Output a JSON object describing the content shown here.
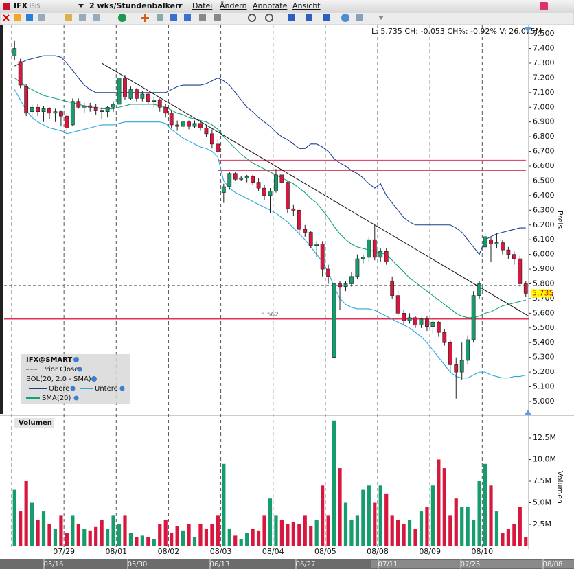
{
  "menu": {
    "symbol": "IFX",
    "exchange": "IBIS",
    "period": "2 wks/Stundenbalken",
    "items": [
      "Datei",
      "Ändern",
      "Annotate",
      "Ansicht"
    ]
  },
  "chart_data": {
    "type": "candlestick",
    "info": "L: 5.735 CH: -0.053 CH%: -0.92% V: 26.075M",
    "y_title": "Preis",
    "categories": [
      null,
      null,
      null,
      null,
      null,
      null,
      null,
      null,
      null,
      "07/29",
      null,
      null,
      null,
      null,
      null,
      null,
      null,
      null,
      "08/01",
      null,
      null,
      null,
      null,
      null,
      null,
      null,
      null,
      "08/02",
      null,
      null,
      null,
      null,
      null,
      null,
      null,
      null,
      "08/03",
      null,
      null,
      null,
      null,
      null,
      null,
      null,
      null,
      "08/04",
      null,
      null,
      null,
      null,
      null,
      null,
      null,
      null,
      "08/05",
      null,
      null,
      null,
      null,
      null,
      null,
      null,
      null,
      "08/08",
      null,
      null,
      null,
      null,
      null,
      null,
      null,
      null,
      "08/09",
      null,
      null,
      null,
      null,
      null,
      null,
      null,
      null,
      "08/10",
      null,
      null,
      null,
      null,
      null,
      null,
      null
    ],
    "open": [
      7.35,
      7.31,
      7.14,
      6.97,
      7.0,
      6.97,
      6.99,
      6.96,
      6.97,
      6.94,
      6.88,
      7.04,
      7.0,
      7.01,
      7.0,
      6.98,
      6.97,
      7.0,
      7.02,
      7.2,
      7.06,
      7.12,
      7.06,
      7.09,
      7.04,
      7.05,
      7.0,
      6.96,
      6.88,
      6.87,
      6.9,
      6.87,
      6.89,
      6.86,
      6.82,
      6.75,
      6.42,
      6.46,
      6.55,
      6.51,
      6.52,
      6.53,
      6.49,
      6.45,
      6.4,
      6.43,
      6.54,
      6.49,
      6.31,
      6.3,
      6.17,
      6.15,
      6.06,
      6.07,
      5.9,
      5.3,
      5.8,
      5.78,
      5.8,
      5.85,
      5.97,
      5.98,
      6.1,
      5.98,
      6.02,
      5.82,
      5.72,
      5.6,
      5.55,
      5.57,
      5.52,
      5.56,
      5.51,
      5.54,
      5.47,
      5.4,
      5.25,
      5.2,
      5.28,
      5.42,
      5.72,
      6.05,
      6.1,
      6.07,
      6.08,
      6.03,
      6.0,
      5.97,
      5.8
    ],
    "high": [
      7.45,
      7.33,
      7.16,
      7.02,
      7.02,
      7.01,
      7.0,
      6.99,
      6.98,
      6.96,
      7.06,
      7.06,
      7.03,
      7.03,
      7.02,
      7.0,
      7.01,
      7.04,
      7.22,
      7.22,
      7.14,
      7.13,
      7.11,
      7.1,
      7.07,
      7.06,
      7.02,
      6.98,
      6.91,
      6.91,
      6.91,
      6.91,
      6.9,
      6.88,
      6.85,
      6.78,
      6.48,
      6.56,
      6.56,
      6.53,
      6.54,
      6.54,
      6.52,
      6.47,
      6.45,
      6.58,
      6.56,
      6.5,
      6.34,
      6.31,
      6.2,
      6.16,
      6.09,
      6.09,
      5.93,
      5.85,
      5.82,
      5.82,
      5.88,
      6.0,
      6.0,
      6.12,
      6.2,
      6.04,
      6.04,
      5.85,
      5.75,
      5.62,
      5.6,
      5.58,
      5.57,
      5.58,
      5.56,
      5.55,
      5.49,
      5.42,
      5.3,
      5.4,
      5.45,
      5.75,
      5.82,
      6.15,
      6.12,
      6.14,
      6.1,
      6.05,
      6.02,
      5.99,
      5.82
    ],
    "low": [
      7.32,
      7.13,
      6.94,
      6.93,
      6.94,
      6.9,
      6.92,
      6.9,
      6.87,
      6.82,
      6.87,
      6.99,
      6.96,
      6.97,
      6.95,
      6.92,
      6.93,
      6.97,
      7.01,
      7.05,
      7.05,
      7.04,
      7.04,
      7.02,
      7.0,
      6.97,
      6.93,
      6.86,
      6.84,
      6.85,
      6.85,
      6.86,
      6.84,
      6.8,
      6.72,
      6.69,
      6.35,
      6.44,
      6.5,
      6.5,
      6.49,
      6.47,
      6.43,
      6.37,
      6.28,
      6.42,
      6.47,
      6.28,
      6.26,
      6.14,
      6.12,
      6.04,
      5.98,
      5.85,
      5.8,
      5.28,
      5.62,
      5.75,
      5.78,
      5.83,
      5.94,
      5.95,
      5.96,
      5.95,
      5.93,
      5.7,
      5.58,
      5.52,
      5.53,
      5.5,
      5.5,
      5.48,
      5.46,
      5.44,
      5.38,
      5.2,
      5.02,
      5.15,
      5.25,
      5.4,
      5.7,
      6.0,
      5.95,
      6.04,
      6.0,
      5.97,
      5.93,
      5.78,
      5.71
    ],
    "close": [
      7.4,
      7.15,
      6.96,
      7.0,
      6.97,
      6.99,
      6.96,
      6.97,
      6.94,
      6.86,
      7.04,
      7.0,
      7.01,
      7.0,
      6.98,
      6.97,
      7.0,
      7.02,
      7.2,
      7.07,
      7.12,
      7.06,
      7.09,
      7.04,
      7.05,
      7.0,
      6.96,
      6.88,
      6.87,
      6.9,
      6.87,
      6.89,
      6.86,
      6.82,
      6.75,
      6.7,
      6.46,
      6.55,
      6.51,
      6.52,
      6.53,
      6.49,
      6.45,
      6.4,
      6.43,
      6.54,
      6.49,
      6.31,
      6.3,
      6.17,
      6.15,
      6.06,
      6.07,
      5.9,
      5.85,
      5.8,
      5.78,
      5.8,
      5.85,
      5.97,
      5.98,
      6.1,
      5.98,
      6.02,
      5.95,
      5.72,
      5.6,
      5.55,
      5.57,
      5.52,
      5.56,
      5.51,
      5.54,
      5.47,
      5.4,
      5.25,
      5.2,
      5.28,
      5.42,
      5.72,
      5.8,
      6.12,
      6.07,
      6.08,
      6.03,
      6.0,
      5.97,
      5.8,
      5.735
    ],
    "up_color": "#169c6d",
    "down_color": "#d8173f",
    "ylim": [
      4.916,
      7.561
    ],
    "yticks": [
      {
        "value": 5.0,
        "label": "5.000"
      },
      {
        "value": 5.1,
        "label": "5.100"
      },
      {
        "value": 5.2,
        "label": "5.200"
      },
      {
        "value": 5.3,
        "label": "5.300"
      },
      {
        "value": 5.4,
        "label": "5.400"
      },
      {
        "value": 5.5,
        "label": "5.500"
      },
      {
        "value": 5.6,
        "label": "5.600"
      },
      {
        "value": 5.7,
        "label": "5.700"
      },
      {
        "value": 5.8,
        "label": "5.800"
      },
      {
        "value": 5.9,
        "label": "5.900"
      },
      {
        "value": 6.0,
        "label": "6.000"
      },
      {
        "value": 6.1,
        "label": "6.100"
      },
      {
        "value": 6.2,
        "label": "6.200"
      },
      {
        "value": 6.3,
        "label": "6.300"
      },
      {
        "value": 6.4,
        "label": "6.400"
      },
      {
        "value": 6.5,
        "label": "6.500"
      },
      {
        "value": 6.6,
        "label": "6.600"
      },
      {
        "value": 6.7,
        "label": "6.700"
      },
      {
        "value": 6.8,
        "label": "6.800"
      },
      {
        "value": 6.9,
        "label": "6.900"
      },
      {
        "value": 7.0,
        "label": "7.000"
      },
      {
        "value": 7.1,
        "label": "7.100"
      },
      {
        "value": 7.2,
        "label": "7.200"
      },
      {
        "value": 7.3,
        "label": "7.300"
      },
      {
        "value": 7.4,
        "label": "7.400"
      },
      {
        "value": 7.5,
        "label": "7.500"
      }
    ],
    "last": 5.735,
    "prior_close": 5.79,
    "levels": [
      6.64,
      6.57,
      5.562
    ],
    "level_color": "#e0305a",
    "trendline": {
      "x": [
        15,
        88.5
      ],
      "y": [
        7.3,
        5.58
      ]
    },
    "bands": {
      "upper_color": "#1b3e95",
      "lower_color": "#2aa9df",
      "sma_color": "#12a27a",
      "upper": [
        7.28,
        7.3,
        7.32,
        7.33,
        7.34,
        7.35,
        7.35,
        7.35,
        7.34,
        7.3,
        7.25,
        7.2,
        7.15,
        7.12,
        7.1,
        7.1,
        7.1,
        7.1,
        7.1,
        7.1,
        7.1,
        7.1,
        7.1,
        7.1,
        7.1,
        7.1,
        7.1,
        7.12,
        7.14,
        7.15,
        7.15,
        7.15,
        7.15,
        7.16,
        7.18,
        7.2,
        7.18,
        7.15,
        7.1,
        7.05,
        7.0,
        6.97,
        6.93,
        6.9,
        6.87,
        6.83,
        6.8,
        6.78,
        6.75,
        6.72,
        6.72,
        6.75,
        6.75,
        6.73,
        6.7,
        6.65,
        6.62,
        6.6,
        6.57,
        6.55,
        6.52,
        6.48,
        6.45,
        6.48,
        6.4,
        6.35,
        6.3,
        6.25,
        6.22,
        6.2,
        6.2,
        6.2,
        6.2,
        6.2,
        6.2,
        6.2,
        6.18,
        6.15,
        6.1,
        6.05,
        6.0,
        6.1,
        6.12,
        6.14,
        6.15,
        6.16,
        6.17,
        6.18,
        6.18
      ],
      "sma": [
        7.2,
        7.17,
        7.14,
        7.12,
        7.1,
        7.08,
        7.07,
        7.06,
        7.05,
        7.04,
        7.03,
        7.02,
        7.01,
        7.0,
        7.0,
        6.99,
        6.99,
        6.99,
        7.0,
        7.01,
        7.02,
        7.02,
        7.02,
        7.02,
        7.02,
        7.01,
        7.0,
        6.98,
        6.96,
        6.95,
        6.93,
        6.92,
        6.91,
        6.9,
        6.88,
        6.85,
        6.8,
        6.76,
        6.72,
        6.68,
        6.65,
        6.62,
        6.6,
        6.58,
        6.56,
        6.54,
        6.52,
        6.5,
        6.48,
        6.45,
        6.42,
        6.38,
        6.35,
        6.3,
        6.25,
        6.19,
        6.14,
        6.1,
        6.07,
        6.05,
        6.04,
        6.03,
        6.02,
        6.01,
        6.0,
        5.96,
        5.92,
        5.88,
        5.84,
        5.81,
        5.78,
        5.75,
        5.72,
        5.69,
        5.66,
        5.63,
        5.6,
        5.58,
        5.57,
        5.57,
        5.58,
        5.6,
        5.61,
        5.63,
        5.65,
        5.66,
        5.67,
        5.68,
        5.69
      ],
      "lower": [
        7.12,
        7.05,
        6.98,
        6.93,
        6.9,
        6.88,
        6.86,
        6.85,
        6.84,
        6.82,
        6.83,
        6.84,
        6.85,
        6.86,
        6.87,
        6.88,
        6.88,
        6.88,
        6.89,
        6.9,
        6.9,
        6.9,
        6.9,
        6.9,
        6.9,
        6.9,
        6.89,
        6.85,
        6.82,
        6.79,
        6.77,
        6.75,
        6.73,
        6.72,
        6.7,
        6.66,
        6.5,
        6.45,
        6.42,
        6.4,
        6.38,
        6.36,
        6.34,
        6.32,
        6.3,
        6.28,
        6.25,
        6.22,
        6.18,
        6.14,
        6.1,
        6.05,
        6.0,
        5.95,
        5.88,
        5.78,
        5.7,
        5.66,
        5.64,
        5.63,
        5.63,
        5.63,
        5.62,
        5.6,
        5.58,
        5.56,
        5.54,
        5.52,
        5.5,
        5.47,
        5.44,
        5.4,
        5.35,
        5.3,
        5.25,
        5.2,
        5.17,
        5.16,
        5.16,
        5.18,
        5.2,
        5.2,
        5.18,
        5.17,
        5.16,
        5.16,
        5.17,
        5.17,
        5.18
      ]
    },
    "legend": {
      "symbol": "IFX@SMART",
      "prior_close": "Prior Close",
      "bollinger": "BOL(20, 2.0 - SMA)",
      "upper": "Obere",
      "lower": "Untere",
      "sma": "SMA(20)"
    },
    "volume": {
      "title": "Volumen",
      "y_title": "Volumen",
      "ylim": [
        0,
        14.72
      ],
      "yticks": [
        {
          "value": 2.5,
          "label": "2.5M"
        },
        {
          "value": 5,
          "label": "5.0M"
        },
        {
          "value": 7.5,
          "label": "7.5M"
        },
        {
          "value": 10,
          "label": "10.0M"
        },
        {
          "value": 12.5,
          "label": "12.5M"
        }
      ],
      "values": [
        6.5,
        4.0,
        7.5,
        5.0,
        3.0,
        4.0,
        2.5,
        2.0,
        3.5,
        1.5,
        3.5,
        2.5,
        2.0,
        1.8,
        2.2,
        3.0,
        2.0,
        3.5,
        2.5,
        3.5,
        1.5,
        1.0,
        1.2,
        1.0,
        0.8,
        2.5,
        3.0,
        1.5,
        2.3,
        1.8,
        2.5,
        1.0,
        2.5,
        2.0,
        2.5,
        3.5,
        9.5,
        2.0,
        1.2,
        0.8,
        1.5,
        2.0,
        1.8,
        3.5,
        5.5,
        3.5,
        3.0,
        2.5,
        2.8,
        2.5,
        3.5,
        2.3,
        3.0,
        7.0,
        3.5,
        14.5,
        9.0,
        5.0,
        3.0,
        3.5,
        6.5,
        7.0,
        5.0,
        7.0,
        6.0,
        3.5,
        3.0,
        2.5,
        3.0,
        2.0,
        4.0,
        4.5,
        7.0,
        10.0,
        9.0,
        3.5,
        5.5,
        4.5,
        4.5,
        3.0,
        7.5,
        9.5,
        7.0,
        4.0,
        1.5,
        2.0,
        2.5,
        4.5,
        1.0
      ]
    }
  },
  "scrollbar": {
    "dates": [
      "05/16",
      "05/30",
      "06/13",
      "06/27",
      "07/11",
      "07/25",
      "08/08"
    ]
  }
}
